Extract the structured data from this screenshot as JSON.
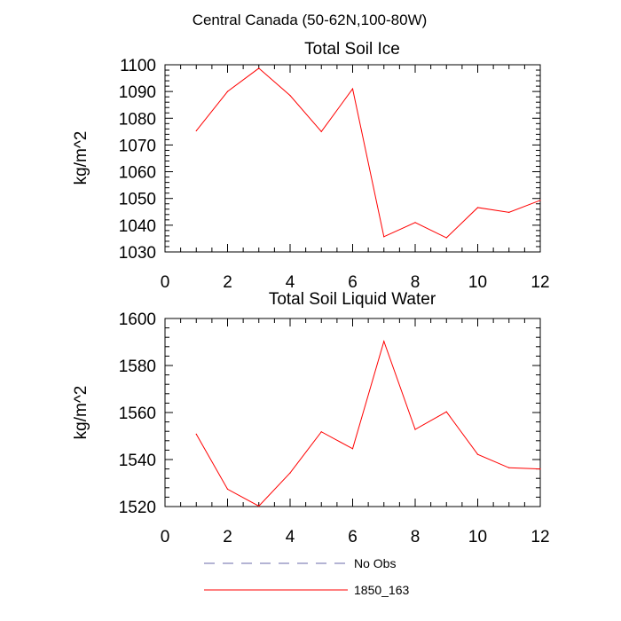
{
  "figure": {
    "suptitle": "Central Canada (50-62N,100-80W)"
  },
  "chart_data": [
    {
      "type": "line",
      "title": "Total Soil Ice",
      "xlabel": "",
      "ylabel": "kg/m^2",
      "xlim": [
        0,
        12
      ],
      "ylim": [
        1030,
        1100
      ],
      "xticks": [
        0,
        2,
        4,
        6,
        8,
        10,
        12
      ],
      "yticks": [
        1030,
        1040,
        1050,
        1060,
        1070,
        1080,
        1090,
        1100
      ],
      "series": [
        {
          "name": "1850_163",
          "color": "#ff0000",
          "x": [
            1,
            2,
            3,
            4,
            5,
            6,
            7,
            8,
            9,
            10,
            11,
            12
          ],
          "y": [
            1075.3,
            1090.0,
            1098.7,
            1088.5,
            1075.0,
            1091.0,
            1035.7,
            1041.0,
            1035.3,
            1046.6,
            1044.8,
            1049.3
          ]
        }
      ]
    },
    {
      "type": "line",
      "title": "Total Soil Liquid Water",
      "xlabel": "",
      "ylabel": "kg/m^2",
      "xlim": [
        0,
        12
      ],
      "ylim": [
        1520,
        1600
      ],
      "xticks": [
        0,
        2,
        4,
        6,
        8,
        10,
        12
      ],
      "yticks": [
        1520,
        1540,
        1560,
        1580,
        1600
      ],
      "series": [
        {
          "name": "1850_163",
          "color": "#ff0000",
          "x": [
            1,
            2,
            3,
            4,
            5,
            6,
            7,
            8,
            9,
            10,
            11,
            12
          ],
          "y": [
            1550.8,
            1527.4,
            1520.2,
            1534.3,
            1551.8,
            1544.6,
            1590.3,
            1552.8,
            1560.3,
            1542.2,
            1536.5,
            1536.0
          ]
        }
      ]
    }
  ],
  "legend": {
    "items": [
      {
        "label": "No Obs",
        "color": "#6a6aa8",
        "style": "dashed"
      },
      {
        "label": "1850_163",
        "color": "#ff0000",
        "style": "solid"
      }
    ]
  }
}
